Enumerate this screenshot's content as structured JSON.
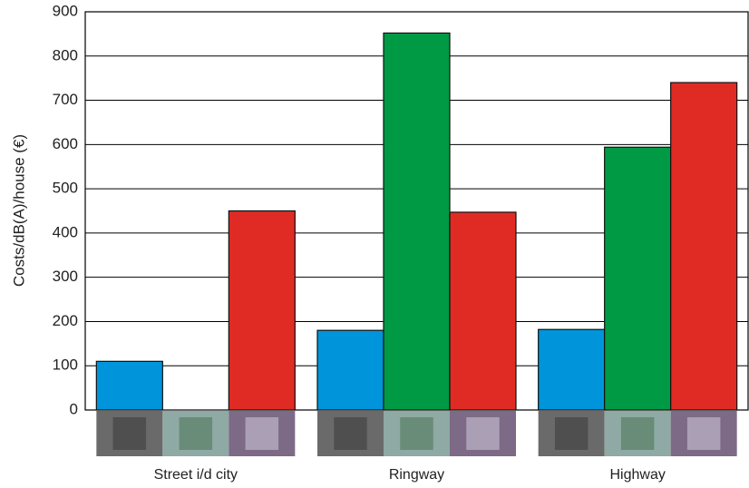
{
  "chart_data": {
    "type": "bar",
    "y_label": "Costs/dB(A)/house  (€)",
    "categories": [
      "Street i/d city",
      "Ringway",
      "Highway"
    ],
    "series": [
      {
        "color": "#0095da",
        "values": [
          110,
          180,
          182
        ]
      },
      {
        "color": "#009a45",
        "values": [
          null,
          852,
          594
        ]
      },
      {
        "color": "#e02b25",
        "values": [
          450,
          447,
          740
        ]
      }
    ],
    "ylim": [
      0,
      900
    ],
    "yticks": [
      0,
      100,
      200,
      300,
      400,
      500,
      600,
      700,
      800,
      900
    ],
    "grid": true
  }
}
